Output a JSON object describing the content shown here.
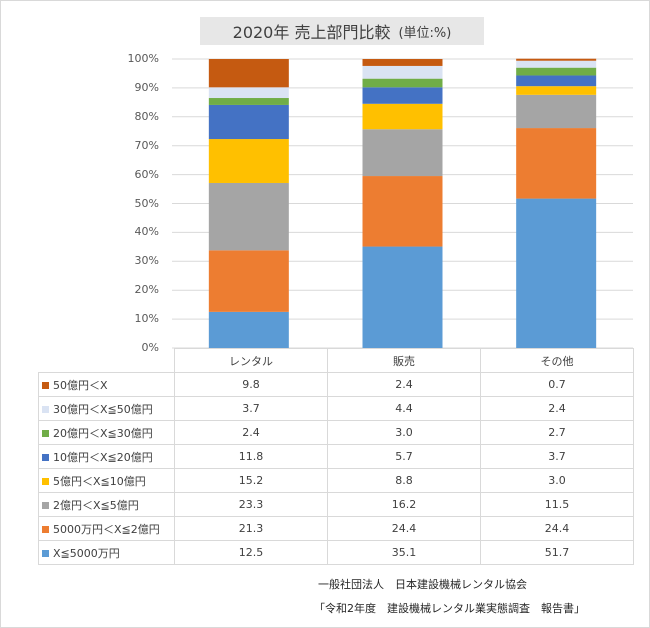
{
  "title": "2020年  売上部門比較",
  "title_unit": "(単位:%)",
  "source_org": "一般社団法人　日本建設機械レンタル協会",
  "source_report": "「令和2年度　建設機械レンタル業実態調査　報告書」",
  "chart_data": {
    "type": "bar",
    "stacked": true,
    "percent": true,
    "categories": [
      "レンタル",
      "販売",
      "その他"
    ],
    "ylim": [
      0,
      100
    ],
    "y_ticks": [
      "0%",
      "10%",
      "20%",
      "30%",
      "40%",
      "50%",
      "60%",
      "70%",
      "80%",
      "90%",
      "100%"
    ],
    "grid": true,
    "data_table": true,
    "series": [
      {
        "name": "X≦5000万円",
        "color": "#5b9bd5",
        "values": [
          12.5,
          35.1,
          51.7
        ]
      },
      {
        "name": "5000万円＜X≦2億円",
        "color": "#ed7d31",
        "values": [
          21.3,
          24.4,
          24.4
        ]
      },
      {
        "name": "2億円＜X≦5億円",
        "color": "#a5a5a5",
        "values": [
          23.3,
          16.2,
          11.5
        ]
      },
      {
        "name": "5億円＜X≦10億円",
        "color": "#ffc000",
        "values": [
          15.2,
          8.8,
          3.0
        ]
      },
      {
        "name": "10億円＜X≦20億円",
        "color": "#4472c4",
        "values": [
          11.8,
          5.7,
          3.7
        ]
      },
      {
        "name": "20億円＜X≦30億円",
        "color": "#70ad47",
        "values": [
          2.4,
          3.0,
          2.7
        ]
      },
      {
        "name": "30億円＜X≦50億円",
        "color": "#dae3f3",
        "values": [
          3.7,
          4.4,
          2.4
        ]
      },
      {
        "name": "50億円＜X",
        "color": "#c55a11",
        "values": [
          9.8,
          2.4,
          0.7
        ]
      }
    ]
  }
}
